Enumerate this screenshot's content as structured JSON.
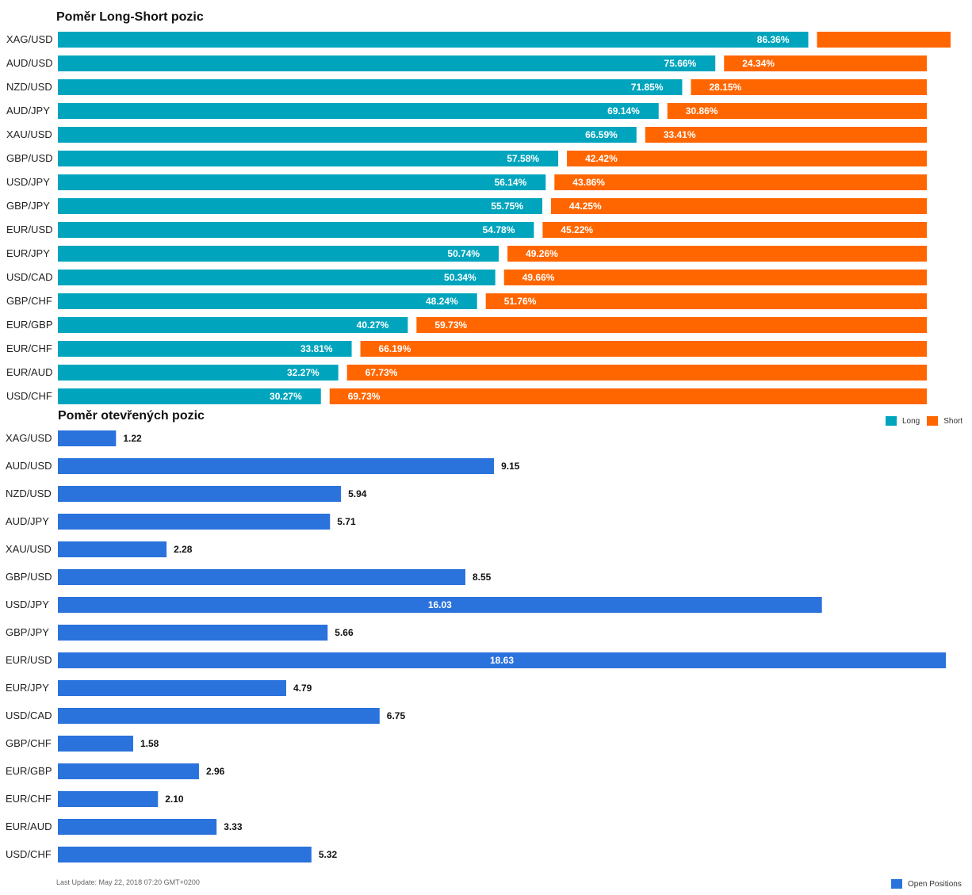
{
  "chart_data": [
    {
      "type": "bar",
      "orientation": "horizontal",
      "stacked": true,
      "title": "Poměr Long-Short pozic",
      "categories": [
        "XAG/USD",
        "AUD/USD",
        "NZD/USD",
        "AUD/JPY",
        "XAU/USD",
        "GBP/USD",
        "USD/JPY",
        "GBP/JPY",
        "EUR/USD",
        "EUR/JPY",
        "USD/CAD",
        "GBP/CHF",
        "EUR/GBP",
        "EUR/CHF",
        "EUR/AUD",
        "USD/CHF"
      ],
      "series": [
        {
          "name": "Long",
          "color": "#00a5bd",
          "values": [
            86.36,
            75.66,
            71.85,
            69.14,
            66.59,
            57.58,
            56.14,
            55.75,
            54.78,
            50.74,
            50.34,
            48.24,
            40.27,
            33.81,
            32.27,
            30.27
          ],
          "labels": [
            "86.36%",
            "75.66%",
            "71.85%",
            "69.14%",
            "66.59%",
            "57.58%",
            "56.14%",
            "55.75%",
            "54.78%",
            "50.74%",
            "50.34%",
            "48.24%",
            "40.27%",
            "33.81%",
            "32.27%",
            "30.27%"
          ]
        },
        {
          "name": "Short",
          "color": "#ff6600",
          "values": [
            13.64,
            24.34,
            28.15,
            30.86,
            33.41,
            42.42,
            43.86,
            44.25,
            45.22,
            49.26,
            49.66,
            51.76,
            59.73,
            66.19,
            67.73,
            69.73
          ],
          "labels": [
            "",
            "24.34%",
            "28.15%",
            "30.86%",
            "33.41%",
            "42.42%",
            "43.86%",
            "44.25%",
            "45.22%",
            "49.26%",
            "49.66%",
            "51.76%",
            "59.73%",
            "66.19%",
            "67.73%",
            "69.73%"
          ]
        }
      ],
      "xlim": [
        0,
        100
      ],
      "legend": "bottom-right",
      "grid": false
    },
    {
      "type": "bar",
      "orientation": "horizontal",
      "title": "Poměr otevřených pozic",
      "categories": [
        "XAG/USD",
        "AUD/USD",
        "NZD/USD",
        "AUD/JPY",
        "XAU/USD",
        "GBP/USD",
        "USD/JPY",
        "GBP/JPY",
        "EUR/USD",
        "EUR/JPY",
        "USD/CAD",
        "GBP/CHF",
        "EUR/GBP",
        "EUR/CHF",
        "EUR/AUD",
        "USD/CHF"
      ],
      "series": [
        {
          "name": "Open Positions",
          "color": "#2a72dc",
          "values": [
            1.22,
            9.15,
            5.94,
            5.71,
            2.28,
            8.55,
            16.03,
            5.66,
            18.63,
            4.79,
            6.75,
            1.58,
            2.96,
            2.1,
            3.33,
            5.32
          ],
          "labels": [
            "1.22",
            "9.15",
            "5.94",
            "5.71",
            "2.28",
            "8.55",
            "16.03",
            "5.66",
            "18.63",
            "4.79",
            "6.75",
            "1.58",
            "2.96",
            "2.10",
            "3.33",
            "5.32"
          ]
        }
      ],
      "xlim": [
        0,
        18.63
      ],
      "legend": "bottom-right",
      "grid": false
    }
  ],
  "footer": {
    "last_update": "Last Update: May 22, 2018 07:20 GMT+0200"
  }
}
